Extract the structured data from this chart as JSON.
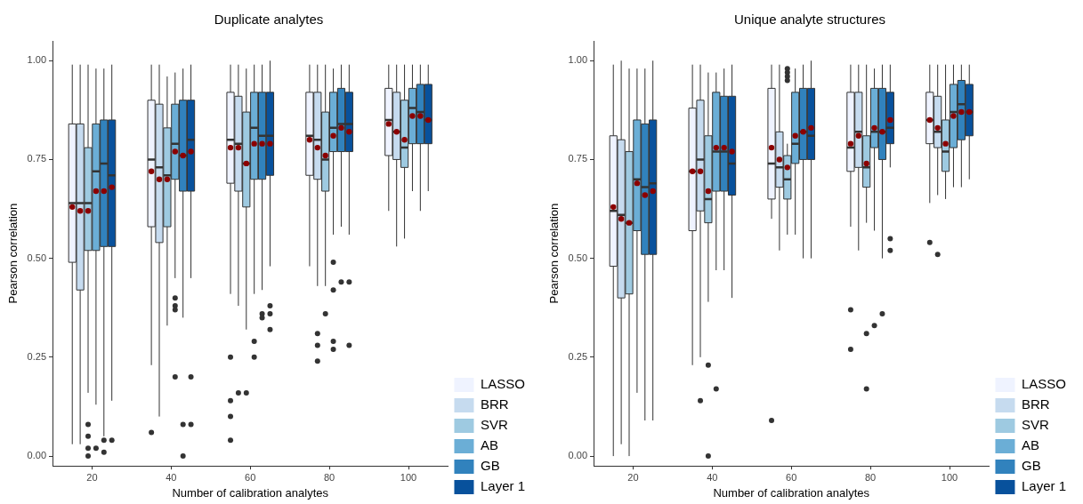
{
  "chart_data": [
    {
      "type": "box",
      "title": "Duplicate analytes",
      "xlabel": "Number of calibration analytes",
      "ylabel": "Pearson correlation",
      "categories": [
        "20",
        "40",
        "60",
        "80",
        "100"
      ],
      "ylim": [
        -0.025,
        1.05
      ],
      "yticks": [
        {
          "value": 0,
          "label": "0.00"
        },
        {
          "value": 0.25,
          "label": "0.25"
        },
        {
          "value": 0.5,
          "label": "0.50"
        },
        {
          "value": 0.75,
          "label": "0.75"
        },
        {
          "value": 1,
          "label": "1.00"
        }
      ],
      "legend": "bottom right",
      "series": [
        {
          "name": "LASSO",
          "color": "#eff3ff",
          "boxes": [
            {
              "low": 0.03,
              "q1": 0.49,
              "median": 0.64,
              "q3": 0.84,
              "high": 0.99,
              "mean": 0.63
            },
            {
              "low": 0.23,
              "q1": 0.58,
              "median": 0.75,
              "q3": 0.9,
              "high": 0.99,
              "mean": 0.72,
              "outliers": [
                0.06
              ]
            },
            {
              "low": 0.41,
              "q1": 0.69,
              "median": 0.8,
              "q3": 0.92,
              "high": 0.99,
              "mean": 0.78,
              "outliers": [
                0.25,
                0.14,
                0.1,
                0.04
              ]
            },
            {
              "low": 0.48,
              "q1": 0.71,
              "median": 0.81,
              "q3": 0.92,
              "high": 0.99,
              "mean": 0.8
            },
            {
              "low": 0.62,
              "q1": 0.76,
              "median": 0.85,
              "q3": 0.93,
              "high": 0.99,
              "mean": 0.84
            }
          ]
        },
        {
          "name": "BRR",
          "color": "#c6dbef",
          "boxes": [
            {
              "low": 0.03,
              "q1": 0.42,
              "median": 0.64,
              "q3": 0.84,
              "high": 0.99,
              "mean": 0.62
            },
            {
              "low": 0.1,
              "q1": 0.54,
              "median": 0.73,
              "q3": 0.89,
              "high": 0.99,
              "mean": 0.7
            },
            {
              "low": 0.38,
              "q1": 0.67,
              "median": 0.79,
              "q3": 0.91,
              "high": 0.99,
              "mean": 0.78,
              "outliers": [
                0.16
              ]
            },
            {
              "low": 0.43,
              "q1": 0.7,
              "median": 0.8,
              "q3": 0.92,
              "high": 0.99,
              "mean": 0.78,
              "outliers": [
                0.31,
                0.28,
                0.24
              ]
            },
            {
              "low": 0.53,
              "q1": 0.75,
              "median": 0.82,
              "q3": 0.92,
              "high": 0.99,
              "mean": 0.82
            }
          ]
        },
        {
          "name": "SVR",
          "color": "#9ecae1",
          "boxes": [
            {
              "low": 0.16,
              "q1": 0.52,
              "median": 0.64,
              "q3": 0.78,
              "high": 0.99,
              "mean": 0.62,
              "outliers": [
                0.08,
                0.05,
                0.02,
                0.0
              ]
            },
            {
              "low": 0.33,
              "q1": 0.58,
              "median": 0.71,
              "q3": 0.83,
              "high": 0.96,
              "mean": 0.7
            },
            {
              "low": 0.32,
              "q1": 0.63,
              "median": 0.74,
              "q3": 0.87,
              "high": 0.98,
              "mean": 0.74,
              "outliers": [
                0.16
              ]
            },
            {
              "low": 0.43,
              "q1": 0.67,
              "median": 0.75,
              "q3": 0.87,
              "high": 0.99,
              "mean": 0.76,
              "outliers": [
                0.36
              ]
            },
            {
              "low": 0.55,
              "q1": 0.73,
              "median": 0.78,
              "q3": 0.9,
              "high": 0.99,
              "mean": 0.8
            }
          ]
        },
        {
          "name": "AB",
          "color": "#6baed6",
          "boxes": [
            {
              "low": 0.13,
              "q1": 0.52,
              "median": 0.72,
              "q3": 0.84,
              "high": 0.98,
              "mean": 0.67,
              "outliers": [
                0.02
              ]
            },
            {
              "low": 0.45,
              "q1": 0.7,
              "median": 0.79,
              "q3": 0.89,
              "high": 0.97,
              "mean": 0.77,
              "outliers": [
                0.4,
                0.38,
                0.37,
                0.2
              ]
            },
            {
              "low": 0.41,
              "q1": 0.7,
              "median": 0.83,
              "q3": 0.92,
              "high": 0.99,
              "mean": 0.79,
              "outliers": [
                0.29,
                0.25
              ]
            },
            {
              "low": 0.56,
              "q1": 0.77,
              "median": 0.83,
              "q3": 0.92,
              "high": 0.98,
              "mean": 0.81,
              "outliers": [
                0.49,
                0.42,
                0.29,
                0.27
              ]
            },
            {
              "low": 0.67,
              "q1": 0.79,
              "median": 0.88,
              "q3": 0.93,
              "high": 0.99,
              "mean": 0.86
            }
          ]
        },
        {
          "name": "GB",
          "color": "#3182bd",
          "boxes": [
            {
              "low": 0.05,
              "q1": 0.53,
              "median": 0.74,
              "q3": 0.85,
              "high": 0.98,
              "mean": 0.67,
              "outliers": [
                0.04,
                0.01
              ]
            },
            {
              "low": 0.35,
              "q1": 0.67,
              "median": 0.76,
              "q3": 0.9,
              "high": 0.98,
              "mean": 0.76,
              "outliers": [
                0.08,
                0.0
              ]
            },
            {
              "low": 0.42,
              "q1": 0.7,
              "median": 0.81,
              "q3": 0.92,
              "high": 0.99,
              "mean": 0.79,
              "outliers": [
                0.36,
                0.35
              ]
            },
            {
              "low": 0.58,
              "q1": 0.77,
              "median": 0.84,
              "q3": 0.93,
              "high": 0.99,
              "mean": 0.83,
              "outliers": [
                0.44
              ]
            },
            {
              "low": 0.62,
              "q1": 0.79,
              "median": 0.87,
              "q3": 0.94,
              "high": 0.99,
              "mean": 0.86
            }
          ]
        },
        {
          "name": "Layer 1",
          "color": "#08519c",
          "boxes": [
            {
              "low": 0.14,
              "q1": 0.53,
              "median": 0.71,
              "q3": 0.85,
              "high": 0.99,
              "mean": 0.68,
              "outliers": [
                0.04
              ]
            },
            {
              "low": 0.45,
              "q1": 0.67,
              "median": 0.8,
              "q3": 0.9,
              "high": 0.99,
              "mean": 0.77,
              "outliers": [
                0.2,
                0.08
              ]
            },
            {
              "low": 0.48,
              "q1": 0.71,
              "median": 0.81,
              "q3": 0.92,
              "high": 1.0,
              "mean": 0.79,
              "outliers": [
                0.38,
                0.36,
                0.32
              ]
            },
            {
              "low": 0.56,
              "q1": 0.77,
              "median": 0.84,
              "q3": 0.92,
              "high": 0.99,
              "mean": 0.82,
              "outliers": [
                0.44,
                0.28
              ]
            },
            {
              "low": 0.67,
              "q1": 0.79,
              "median": 0.85,
              "q3": 0.94,
              "high": 0.99,
              "mean": 0.85
            }
          ]
        }
      ]
    },
    {
      "type": "box",
      "title": "Unique analyte structures",
      "xlabel": "Number of calibration analytes",
      "ylabel": "Pearson correlation",
      "categories": [
        "20",
        "40",
        "60",
        "80",
        "100"
      ],
      "ylim": [
        -0.025,
        1.05
      ],
      "yticks": [
        {
          "value": 0,
          "label": "0.00"
        },
        {
          "value": 0.25,
          "label": "0.25"
        },
        {
          "value": 0.5,
          "label": "0.50"
        },
        {
          "value": 0.75,
          "label": "0.75"
        },
        {
          "value": 1,
          "label": "1.00"
        }
      ],
      "legend": "bottom right",
      "series": [
        {
          "name": "LASSO",
          "color": "#eff3ff",
          "boxes": [
            {
              "low": 0.0,
              "q1": 0.48,
              "median": 0.62,
              "q3": 0.81,
              "high": 0.99,
              "mean": 0.63
            },
            {
              "low": 0.23,
              "q1": 0.57,
              "median": 0.72,
              "q3": 0.88,
              "high": 0.99,
              "mean": 0.72
            },
            {
              "low": 0.6,
              "q1": 0.65,
              "median": 0.74,
              "q3": 0.93,
              "high": 0.99,
              "mean": 0.78,
              "outliers": [
                0.09
              ]
            },
            {
              "low": 0.58,
              "q1": 0.72,
              "median": 0.78,
              "q3": 0.92,
              "high": 0.99,
              "mean": 0.79,
              "outliers": [
                0.37,
                0.27
              ]
            },
            {
              "low": 0.64,
              "q1": 0.79,
              "median": 0.85,
              "q3": 0.92,
              "high": 0.99,
              "mean": 0.85,
              "outliers": [
                0.54
              ]
            }
          ]
        },
        {
          "name": "BRR",
          "color": "#c6dbef",
          "boxes": [
            {
              "low": 0.03,
              "q1": 0.4,
              "median": 0.61,
              "q3": 0.8,
              "high": 1.0,
              "mean": 0.6
            },
            {
              "low": 0.25,
              "q1": 0.62,
              "median": 0.75,
              "q3": 0.9,
              "high": 0.99,
              "mean": 0.72,
              "outliers": [
                0.14
              ]
            },
            {
              "low": 0.52,
              "q1": 0.68,
              "median": 0.73,
              "q3": 0.82,
              "high": 0.99,
              "mean": 0.75
            },
            {
              "low": 0.52,
              "q1": 0.73,
              "median": 0.82,
              "q3": 0.92,
              "high": 0.99,
              "mean": 0.81
            },
            {
              "low": 0.66,
              "q1": 0.78,
              "median": 0.82,
              "q3": 0.91,
              "high": 0.99,
              "mean": 0.83,
              "outliers": [
                0.51
              ]
            }
          ]
        },
        {
          "name": "SVR",
          "color": "#9ecae1",
          "boxes": [
            {
              "low": 0.0,
              "q1": 0.41,
              "median": 0.59,
              "q3": 0.77,
              "high": 0.98,
              "mean": 0.59
            },
            {
              "low": 0.39,
              "q1": 0.59,
              "median": 0.65,
              "q3": 0.81,
              "high": 0.97,
              "mean": 0.67,
              "outliers": [
                0.23,
                0.0
              ]
            },
            {
              "low": 0.56,
              "q1": 0.65,
              "median": 0.7,
              "q3": 0.76,
              "high": 0.79,
              "mean": 0.73,
              "outliers": [
                0.98,
                0.97,
                0.96,
                0.95
              ]
            },
            {
              "low": 0.59,
              "q1": 0.68,
              "median": 0.73,
              "q3": 0.81,
              "high": 0.99,
              "mean": 0.74,
              "outliers": [
                0.31,
                0.17
              ]
            },
            {
              "low": 0.65,
              "q1": 0.72,
              "median": 0.77,
              "q3": 0.85,
              "high": 0.99,
              "mean": 0.79
            }
          ]
        },
        {
          "name": "AB",
          "color": "#6baed6",
          "boxes": [
            {
              "low": 0.16,
              "q1": 0.57,
              "median": 0.7,
              "q3": 0.85,
              "high": 0.98,
              "mean": 0.69
            },
            {
              "low": 0.47,
              "q1": 0.67,
              "median": 0.77,
              "q3": 0.92,
              "high": 0.97,
              "mean": 0.78,
              "outliers": [
                0.17
              ]
            },
            {
              "low": 0.56,
              "q1": 0.74,
              "median": 0.79,
              "q3": 0.92,
              "high": 0.98,
              "mean": 0.81
            },
            {
              "low": 0.57,
              "q1": 0.78,
              "median": 0.82,
              "q3": 0.93,
              "high": 0.98,
              "mean": 0.83,
              "outliers": [
                0.33
              ]
            },
            {
              "low": 0.68,
              "q1": 0.78,
              "median": 0.87,
              "q3": 0.94,
              "high": 0.99,
              "mean": 0.86
            }
          ]
        },
        {
          "name": "GB",
          "color": "#3182bd",
          "boxes": [
            {
              "low": 0.09,
              "q1": 0.51,
              "median": 0.68,
              "q3": 0.84,
              "high": 0.98,
              "mean": 0.66
            },
            {
              "low": 0.47,
              "q1": 0.67,
              "median": 0.77,
              "q3": 0.91,
              "high": 0.98,
              "mean": 0.78
            },
            {
              "low": 0.5,
              "q1": 0.75,
              "median": 0.82,
              "q3": 0.93,
              "high": 0.99,
              "mean": 0.82
            },
            {
              "low": 0.5,
              "q1": 0.75,
              "median": 0.82,
              "q3": 0.93,
              "high": 0.99,
              "mean": 0.82,
              "outliers": [
                0.36
              ]
            },
            {
              "low": 0.68,
              "q1": 0.8,
              "median": 0.89,
              "q3": 0.95,
              "high": 0.99,
              "mean": 0.87
            }
          ]
        },
        {
          "name": "Layer 1",
          "color": "#08519c",
          "boxes": [
            {
              "low": 0.09,
              "q1": 0.51,
              "median": 0.69,
              "q3": 0.85,
              "high": 1.0,
              "mean": 0.67
            },
            {
              "low": 0.4,
              "q1": 0.66,
              "median": 0.74,
              "q3": 0.91,
              "high": 0.99,
              "mean": 0.77
            },
            {
              "low": 0.5,
              "q1": 0.75,
              "median": 0.81,
              "q3": 0.93,
              "high": 1.0,
              "mean": 0.83
            },
            {
              "low": 0.73,
              "q1": 0.79,
              "median": 0.83,
              "q3": 0.92,
              "high": 0.99,
              "mean": 0.85,
              "outliers": [
                0.55,
                0.52
              ]
            },
            {
              "low": 0.7,
              "q1": 0.81,
              "median": 0.87,
              "q3": 0.94,
              "high": 0.99,
              "mean": 0.87
            }
          ]
        }
      ]
    }
  ]
}
